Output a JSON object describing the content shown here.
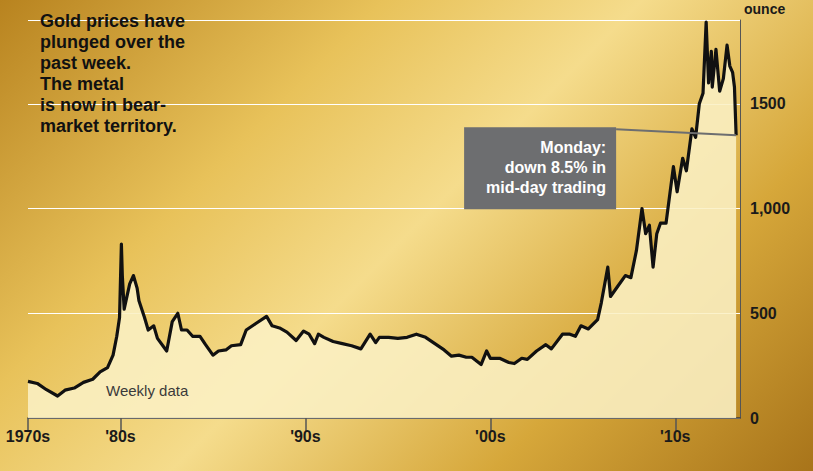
{
  "chart_data": {
    "type": "line",
    "title": "Gold prices have\nplunged over the\npast week.\nThe metal\nis now in bear-\nmarket territory.",
    "note": "Weekly data",
    "y_label": "ounce",
    "annotations": [
      {
        "text": "Monday:\ndown 8.5% in\nmid-day trading"
      }
    ],
    "color": "#111111",
    "fill_color": "#fbf0c4",
    "grid": true,
    "x": [
      1975.0,
      1975.5,
      1976.0,
      1976.6,
      1977.0,
      1977.5,
      1978.0,
      1978.5,
      1978.9,
      1979.3,
      1979.6,
      1979.8,
      1979.95,
      1980.05,
      1980.1,
      1980.2,
      1980.3,
      1980.5,
      1980.7,
      1980.9,
      1981.0,
      1981.3,
      1981.5,
      1981.8,
      1982.0,
      1982.5,
      1982.8,
      1983.1,
      1983.3,
      1983.6,
      1983.9,
      1984.3,
      1984.6,
      1985.0,
      1985.3,
      1985.7,
      1986.0,
      1986.5,
      1986.8,
      1987.3,
      1987.9,
      1988.2,
      1988.6,
      1989.0,
      1989.5,
      1989.9,
      1990.2,
      1990.5,
      1990.7,
      1991.0,
      1991.5,
      1992.0,
      1992.5,
      1993.0,
      1993.5,
      1993.8,
      1994.0,
      1994.5,
      1995.0,
      1995.5,
      1996.0,
      1996.5,
      1997.0,
      1997.5,
      1997.9,
      1998.3,
      1998.7,
      1999.0,
      1999.5,
      1999.8,
      2000.0,
      2000.5,
      2001.0,
      2001.3,
      2001.7,
      2002.0,
      2002.5,
      2003.0,
      2003.3,
      2003.9,
      2004.3,
      2004.6,
      2004.9,
      2005.3,
      2005.8,
      2006.0,
      2006.35,
      2006.5,
      2006.9,
      2007.3,
      2007.6,
      2007.9,
      2008.2,
      2008.4,
      2008.6,
      2008.8,
      2009.0,
      2009.2,
      2009.5,
      2009.9,
      2010.1,
      2010.4,
      2010.6,
      2010.9,
      2011.1,
      2011.3,
      2011.5,
      2011.67,
      2011.8,
      2011.95,
      2012.0,
      2012.2,
      2012.4,
      2012.6,
      2012.8,
      2012.95,
      2013.1,
      2013.2,
      2013.29
    ],
    "values": [
      175,
      165,
      135,
      105,
      133,
      143,
      170,
      185,
      220,
      240,
      300,
      390,
      480,
      830,
      680,
      520,
      560,
      640,
      680,
      620,
      560,
      480,
      420,
      440,
      380,
      320,
      460,
      500,
      420,
      420,
      390,
      390,
      350,
      300,
      320,
      325,
      345,
      350,
      420,
      450,
      485,
      440,
      430,
      410,
      370,
      415,
      400,
      355,
      400,
      385,
      365,
      355,
      345,
      330,
      400,
      360,
      385,
      385,
      380,
      385,
      400,
      385,
      355,
      325,
      295,
      300,
      290,
      290,
      255,
      320,
      285,
      285,
      265,
      260,
      285,
      280,
      320,
      350,
      330,
      400,
      400,
      390,
      440,
      425,
      470,
      550,
      720,
      580,
      630,
      680,
      670,
      800,
      1000,
      880,
      920,
      720,
      880,
      930,
      930,
      1200,
      1080,
      1240,
      1180,
      1380,
      1340,
      1500,
      1550,
      1890,
      1600,
      1750,
      1580,
      1760,
      1560,
      1620,
      1780,
      1680,
      1650,
      1580,
      1350
    ],
    "xlim": [
      1975,
      2013.5
    ],
    "xticks": [
      {
        "value": 1975,
        "label": "1970s"
      },
      {
        "value": 1980,
        "label": "'80s"
      },
      {
        "value": 1990,
        "label": "'90s"
      },
      {
        "value": 2000,
        "label": "'00s"
      },
      {
        "value": 2010,
        "label": "'10s"
      }
    ],
    "ylim": [
      0,
      1900
    ],
    "yticks": [
      0,
      500,
      {
        "value": 1000,
        "label": "1,000"
      },
      1500
    ]
  }
}
